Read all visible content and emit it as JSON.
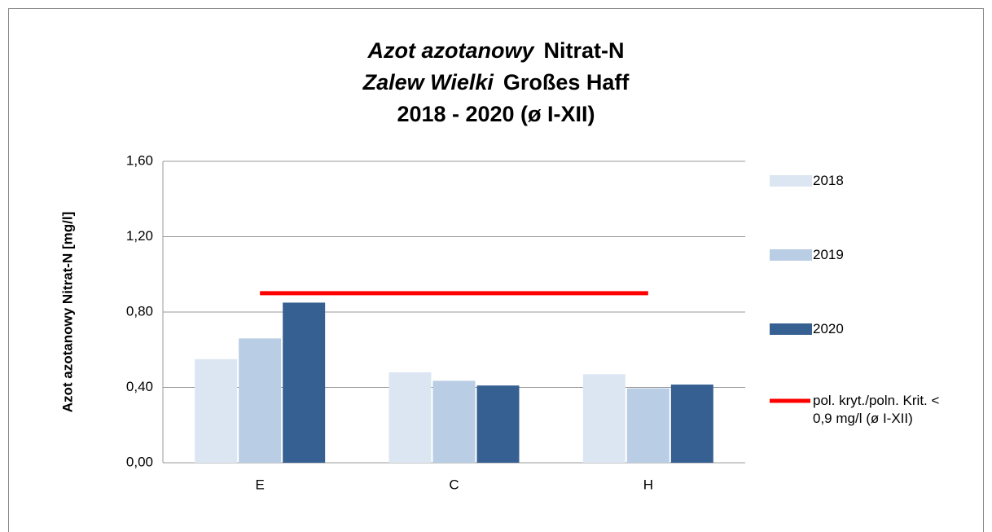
{
  "chart_data": {
    "type": "bar",
    "title": [
      [
        "Azot  azotanowy",
        "Nitrat-N"
      ],
      [
        "Zalew Wielki",
        "Großes Haff"
      ],
      [
        "2018 - 2020 (ø I-XII)"
      ]
    ],
    "title_italic": [
      [
        true,
        false
      ],
      [
        true,
        false
      ],
      [
        false
      ]
    ],
    "y_label": "Azot  azotanowy  Nitrat-N [mg/l]",
    "categories": [
      "E",
      "C",
      "H"
    ],
    "series": [
      {
        "name": "2018",
        "color": "#dce6f2",
        "values": [
          0.55,
          0.48,
          0.47
        ]
      },
      {
        "name": "2019",
        "color": "#b9cde5",
        "values": [
          0.66,
          0.435,
          0.395
        ]
      },
      {
        "name": "2020",
        "color": "#376092",
        "values": [
          0.85,
          0.41,
          0.415
        ]
      },
      {
        "name": "pol. kryt./poln. Krit. < 0,9 mg/l (ø I-XII)",
        "type": "line",
        "color": "#ff0000",
        "values": [
          0.9,
          0.9,
          0.9
        ]
      }
    ],
    "ylim": [
      0,
      1.6
    ],
    "yticks": [
      {
        "value": 0,
        "label": "0,00"
      },
      {
        "value": 0.4,
        "label": "0,40"
      },
      {
        "value": 0.8,
        "label": "0,80"
      },
      {
        "value": 1.2,
        "label": "1,20"
      },
      {
        "value": 1.6,
        "label": "1,60"
      }
    ],
    "grid": true,
    "legend": "right"
  }
}
